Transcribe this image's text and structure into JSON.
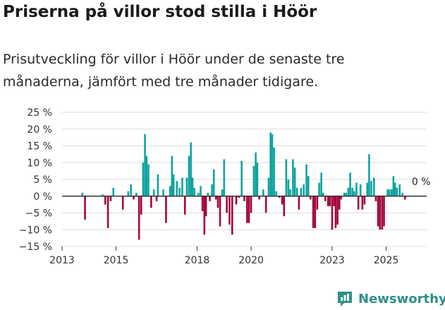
{
  "title": "Priserna på villor stod stilla i Höör",
  "subtitle": "Prisutveckling för villor i Höör under de senaste tre månaderna, jämfört med tre månader tidigare.",
  "brand": "Newsworthy",
  "colors": {
    "positive": "#0fa3a0",
    "negative": "#a3063f",
    "grid": "#dcdcdc",
    "axis": "#333333",
    "brand": "#2f8f8a"
  },
  "chart_data": {
    "type": "bar",
    "title": "Priserna på villor stod stilla i Höör",
    "xlabel": "",
    "ylabel": "",
    "ylim": [
      -15,
      25
    ],
    "x_range": [
      2013,
      2026.5
    ],
    "yticks": [
      -15,
      -10,
      -5,
      0,
      5,
      10,
      15,
      20,
      25
    ],
    "ytick_labels": [
      "−15 %",
      "−10 %",
      "−5 %",
      "0 %",
      "5 %",
      "10 %",
      "15 %",
      "20 %",
      "25 %"
    ],
    "xticks": [
      2013,
      2015,
      2018,
      2020,
      2023,
      2025
    ],
    "xtick_labels": [
      "2013",
      "2015",
      "2018",
      "2020",
      "2023",
      "2025"
    ],
    "annotation": {
      "x": 2025.95,
      "y": 0,
      "text": "0 %"
    },
    "values": [
      [
        2013.75,
        1
      ],
      [
        2013.85,
        -7
      ],
      [
        2014.5,
        0.5
      ],
      [
        2014.6,
        -2.5
      ],
      [
        2014.7,
        -9.5
      ],
      [
        2014.8,
        -1.5
      ],
      [
        2014.9,
        2.5
      ],
      [
        2015.25,
        -4
      ],
      [
        2015.45,
        1.5
      ],
      [
        2015.55,
        3.5
      ],
      [
        2015.65,
        -1
      ],
      [
        2015.75,
        1
      ],
      [
        2015.85,
        -13
      ],
      [
        2015.93,
        -5.5
      ],
      [
        2016.0,
        10
      ],
      [
        2016.07,
        18.5
      ],
      [
        2016.13,
        12
      ],
      [
        2016.2,
        9.5
      ],
      [
        2016.3,
        -3.5
      ],
      [
        2016.4,
        2
      ],
      [
        2016.5,
        -1.5
      ],
      [
        2016.55,
        6.5
      ],
      [
        2016.75,
        2
      ],
      [
        2016.85,
        -8
      ],
      [
        2017.0,
        3
      ],
      [
        2017.07,
        12
      ],
      [
        2017.13,
        6.5
      ],
      [
        2017.25,
        4.5
      ],
      [
        2017.35,
        2.5
      ],
      [
        2017.45,
        5.5
      ],
      [
        2017.55,
        -5.5
      ],
      [
        2017.62,
        5.5
      ],
      [
        2017.7,
        12
      ],
      [
        2017.77,
        16
      ],
      [
        2017.83,
        5.5
      ],
      [
        2017.9,
        2.5
      ],
      [
        2018.05,
        1
      ],
      [
        2018.13,
        3
      ],
      [
        2018.2,
        -4.5
      ],
      [
        2018.27,
        -11.5
      ],
      [
        2018.33,
        -6
      ],
      [
        2018.4,
        1
      ],
      [
        2018.47,
        -1.5
      ],
      [
        2018.55,
        3.5
      ],
      [
        2018.62,
        8
      ],
      [
        2018.7,
        -1
      ],
      [
        2018.77,
        -3.5
      ],
      [
        2018.85,
        -9
      ],
      [
        2018.93,
        2
      ],
      [
        2019.0,
        11
      ],
      [
        2019.1,
        -5
      ],
      [
        2019.2,
        -8.5
      ],
      [
        2019.3,
        -11.5
      ],
      [
        2019.45,
        -2.5
      ],
      [
        2019.55,
        -0.5
      ],
      [
        2019.65,
        10.5
      ],
      [
        2019.75,
        -1.5
      ],
      [
        2019.85,
        -8
      ],
      [
        2019.92,
        -8
      ],
      [
        2020.0,
        -5
      ],
      [
        2020.1,
        9
      ],
      [
        2020.17,
        13
      ],
      [
        2020.23,
        10
      ],
      [
        2020.3,
        -1
      ],
      [
        2020.45,
        2
      ],
      [
        2020.55,
        -5
      ],
      [
        2020.65,
        5.5
      ],
      [
        2020.72,
        19
      ],
      [
        2020.78,
        18.5
      ],
      [
        2020.85,
        14.5
      ],
      [
        2020.93,
        1.5
      ],
      [
        2021.05,
        -0.5
      ],
      [
        2021.15,
        -2.5
      ],
      [
        2021.22,
        -6
      ],
      [
        2021.3,
        11
      ],
      [
        2021.38,
        5
      ],
      [
        2021.45,
        2
      ],
      [
        2021.55,
        11
      ],
      [
        2021.62,
        8.5
      ],
      [
        2021.7,
        2.5
      ],
      [
        2021.77,
        -4
      ],
      [
        2021.85,
        2.5
      ],
      [
        2021.95,
        3.5
      ],
      [
        2022.05,
        9.5
      ],
      [
        2022.12,
        6
      ],
      [
        2022.2,
        -1
      ],
      [
        2022.3,
        -9.5
      ],
      [
        2022.37,
        -9.5
      ],
      [
        2022.45,
        -4
      ],
      [
        2022.52,
        4
      ],
      [
        2022.6,
        7
      ],
      [
        2022.67,
        1
      ],
      [
        2022.75,
        -1.5
      ],
      [
        2022.85,
        -3
      ],
      [
        2022.92,
        -3
      ],
      [
        2023.0,
        -10
      ],
      [
        2023.07,
        -3
      ],
      [
        2023.13,
        -9.5
      ],
      [
        2023.2,
        -8.5
      ],
      [
        2023.27,
        -4
      ],
      [
        2023.33,
        -1
      ],
      [
        2023.45,
        1
      ],
      [
        2023.52,
        1
      ],
      [
        2023.6,
        2.5
      ],
      [
        2023.67,
        7
      ],
      [
        2023.75,
        2.5
      ],
      [
        2023.82,
        1.5
      ],
      [
        2023.9,
        4
      ],
      [
        2023.97,
        -4
      ],
      [
        2024.05,
        3.5
      ],
      [
        2024.12,
        -4
      ],
      [
        2024.2,
        -2.5
      ],
      [
        2024.3,
        4
      ],
      [
        2024.37,
        12.5
      ],
      [
        2024.45,
        4.5
      ],
      [
        2024.55,
        5.5
      ],
      [
        2024.62,
        -1.5
      ],
      [
        2024.7,
        -9
      ],
      [
        2024.77,
        -10
      ],
      [
        2024.85,
        -10
      ],
      [
        2024.92,
        -9
      ],
      [
        2025.05,
        2
      ],
      [
        2025.12,
        2
      ],
      [
        2025.2,
        2
      ],
      [
        2025.27,
        6
      ],
      [
        2025.33,
        4
      ],
      [
        2025.4,
        2.5
      ],
      [
        2025.5,
        3.5
      ],
      [
        2025.6,
        1
      ],
      [
        2025.7,
        -1
      ]
    ]
  }
}
